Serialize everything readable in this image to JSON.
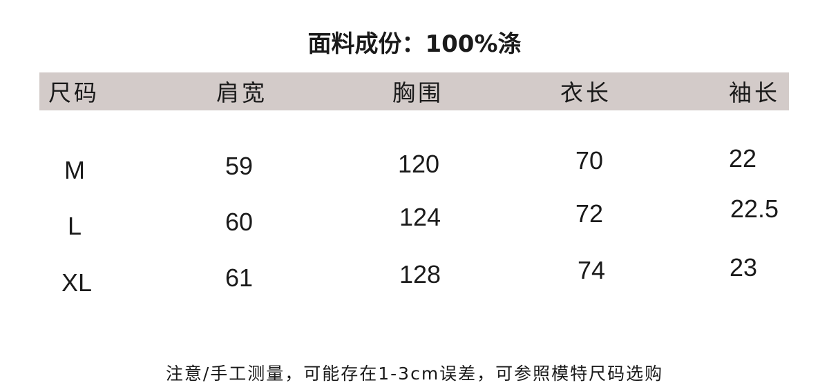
{
  "title": "面料成份：100%涤",
  "header_band_color": "#d3cbc9",
  "table": {
    "headers": [
      "尺码",
      "肩宽",
      "胸围",
      "衣长",
      "袖长"
    ],
    "rows": [
      [
        "M",
        "59",
        "120",
        "70",
        "22"
      ],
      [
        "L",
        "60",
        "124",
        "72",
        "22.5"
      ],
      [
        "XL",
        "61",
        "128",
        "74",
        "23"
      ]
    ]
  },
  "footer_note": "注意/手工测量，可能存在1-3cm误差，可参照模特尺码选购"
}
